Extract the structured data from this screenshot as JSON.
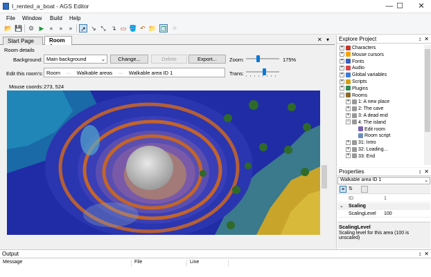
{
  "window": {
    "title": "I_rented_a_boat - AGS Editor",
    "min_label": "—",
    "max_label": "☐",
    "close_label": "✕"
  },
  "menu": [
    "File",
    "Window",
    "Build",
    "Help"
  ],
  "toolbar": {
    "icons": [
      "new-icon",
      "save-icon",
      "settings-icon",
      "run-icon",
      "stop-icon",
      "step-icon",
      "pause-icon",
      "select-tool-icon",
      "arrow-tool-icon",
      "line-tool-icon",
      "freehand-tool-icon",
      "rectangle-tool-icon",
      "fill-tool-icon",
      "undo-icon",
      "folder-icon",
      "import-icon",
      "copy-icon",
      "paste-icon",
      "zoom-icon"
    ],
    "glyphs": [
      "📂",
      "💾",
      "⚙",
      "▶",
      "●",
      "●",
      "●",
      "↗",
      "↘",
      "⤡",
      "↴",
      "▭",
      "🪣",
      "↶",
      "📁",
      "⤵",
      "❐",
      "▣",
      "⁘"
    ]
  },
  "tabs": {
    "items": [
      "Start Page",
      "Room 4"
    ],
    "close_x": "✕",
    "pin": "▾"
  },
  "room": {
    "section_label": "Room details",
    "background_label": "Background:",
    "background_value": "Main background",
    "change_btn": "Change...",
    "delete_btn": "Delete",
    "export_btn": "Export...",
    "zoom_label": "Zoom:",
    "zoom_value": "175%",
    "zoom_level": 0.35,
    "edit_label": "Edit this room's:",
    "edit_parts": [
      "Room",
      "···",
      "Walkable areas",
      "···",
      "Walkable area ID 1"
    ],
    "trans_label": "Trans:",
    "trans_level": 0.55,
    "coords_label": "Mouse coords:",
    "coords_value": "273, 524"
  },
  "explore": {
    "title": "Explore Project",
    "pin": "📌",
    "close": "✕",
    "items": [
      {
        "label": "Characters",
        "indent": 0,
        "color": "#c0392b"
      },
      {
        "label": "Mouse cursors",
        "indent": 0,
        "color": "#f4a300"
      },
      {
        "label": "Fonts",
        "indent": 0,
        "color": "#3b5fc0"
      },
      {
        "label": "Audio",
        "indent": 0,
        "color": "#d84848"
      },
      {
        "label": "Global variables",
        "indent": 0,
        "color": "#3a7bd5"
      },
      {
        "label": "Scripts",
        "indent": 0,
        "color": "#d4a017"
      },
      {
        "label": "Plugins",
        "indent": 0,
        "color": "#2e8b57"
      },
      {
        "label": "Rooms",
        "indent": 0,
        "color": "#8b6a2b"
      },
      {
        "label": "1: A new place",
        "indent": 1,
        "color": "#999999"
      },
      {
        "label": "2: The cave",
        "indent": 1,
        "color": "#999999"
      },
      {
        "label": "3: A dead end",
        "indent": 1,
        "color": "#999999"
      },
      {
        "label": "4: The island",
        "indent": 1,
        "color": "#999999"
      },
      {
        "label": "Edit room",
        "indent": 2,
        "color": "#7a5fb0"
      },
      {
        "label": "Room script",
        "indent": 2,
        "color": "#6c8ebf"
      },
      {
        "label": "31: Intro",
        "indent": 1,
        "color": "#999999"
      },
      {
        "label": "32: Loading...",
        "indent": 1,
        "color": "#999999"
      },
      {
        "label": "33: End",
        "indent": 1,
        "color": "#999999"
      }
    ]
  },
  "properties": {
    "title": "Properties",
    "object": "Walkable area ID 1",
    "rows": [
      {
        "name": "ID",
        "value": "1",
        "readonly": true
      },
      {
        "name": "Scaling",
        "value": "",
        "category": true
      },
      {
        "name": "ScalingLevel",
        "value": "100",
        "readonly": false
      }
    ],
    "help_title": "ScalingLevel",
    "help_text": "Scaling level for this area (100 is unscaled)"
  },
  "output": {
    "title": "Output",
    "columns": [
      "Message",
      "File",
      "Line"
    ]
  },
  "colors": {
    "accent": "#0078d7",
    "water_deep": "#1e2a9e",
    "island_sand": "#6a7d8e"
  }
}
